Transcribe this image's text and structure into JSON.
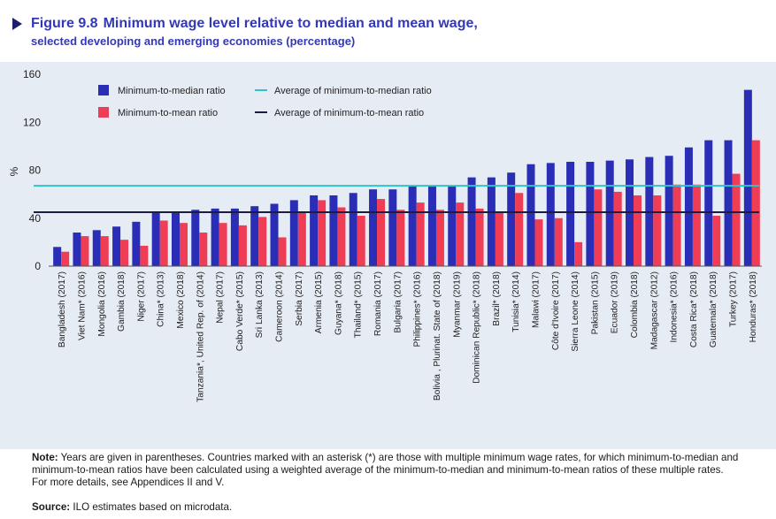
{
  "figure": {
    "number": "Figure 9.8",
    "title": "Minimum wage level relative to median and mean wage,",
    "subtitle": "selected developing and emerging economies (percentage)"
  },
  "chart_data": {
    "type": "bar",
    "ylabel": "%",
    "xlabel": "",
    "ylim": [
      0,
      160
    ],
    "yticks": [
      0,
      40,
      80,
      120,
      160
    ],
    "grid": false,
    "legend_placement": "top-left",
    "categories": [
      "Bangladesh (2017)",
      "Viet Nam* (2016)",
      "Mongolia (2016)",
      "Gambia (2018)",
      "Niger (2017)",
      "China* (2013)",
      "Mexico (2018)",
      "Tanzania*, United Rep. of (2014)",
      "Nepal (2017)",
      "Cabo Verde* (2015)",
      "Sri Lanka (2013)",
      "Cameroon (2014)",
      "Serbia (2017)",
      "Armenia (2015)",
      "Guyana* (2018)",
      "Thailand* (2015)",
      "Romania (2017)",
      "Bulgaria (2017)",
      "Philippines* (2016)",
      "Bolivia , Plurinat. State of (2018)",
      "Myanmar (2019)",
      "Dominican Republic* (2018)",
      "Brazil* (2018)",
      "Tunisia* (2014)",
      "Malawi (2017)",
      "Côte d'Ivoire (2017)",
      "Sierra Leone (2014)",
      "Pakistan (2015)",
      "Ecuador (2019)",
      "Colombia (2018)",
      "Madagascar (2012)",
      "Indonesia* (2016)",
      "Costa Rica* (2018)",
      "Guatemala* (2018)",
      "Turkey (2017)",
      "Honduras* (2018)"
    ],
    "series": [
      {
        "name": "Minimum-to-median ratio",
        "color": "#2a2db5",
        "values": [
          16,
          28,
          30,
          33,
          37,
          45,
          45,
          47,
          48,
          48,
          50,
          52,
          55,
          59,
          59,
          61,
          64,
          64,
          67,
          67,
          67,
          74,
          74,
          78,
          85,
          86,
          87,
          87,
          88,
          89,
          91,
          92,
          99,
          105,
          105,
          147
        ]
      },
      {
        "name": "Minimum-to-mean ratio",
        "color": "#ef3d56",
        "values": [
          12,
          25,
          25,
          22,
          17,
          38,
          36,
          28,
          36,
          34,
          41,
          24,
          45,
          55,
          49,
          42,
          56,
          47,
          53,
          47,
          53,
          48,
          45,
          61,
          39,
          40,
          20,
          64,
          62,
          59,
          59,
          68,
          68,
          42,
          77,
          105
        ]
      }
    ],
    "reference_lines": [
      {
        "name": "Average of minimum-to-median ratio",
        "value": 67,
        "color": "#2ec4c8"
      },
      {
        "name": "Average of minimum-to-mean ratio",
        "value": 45,
        "color": "#1d1b3f"
      }
    ]
  },
  "note": {
    "label": "Note:",
    "text": "Years are given in parentheses. Countries marked with an asterisk (*) are those with multiple minimum wage rates, for which minimum-to-median and minimum-to-mean ratios have been calculated using a weighted average of the minimum-to-median and minimum-to-mean ratios of these multiple rates. For more details, see Appendices II and V."
  },
  "source": {
    "label": "Source:",
    "text": "ILO estimates based on microdata."
  }
}
